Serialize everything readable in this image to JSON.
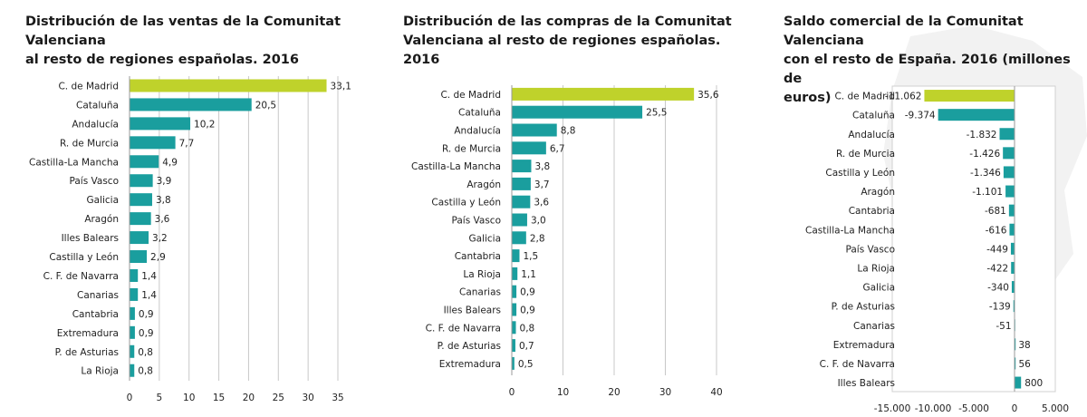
{
  "colors": {
    "highlight": "#bfd22b",
    "bar": "#1a9e9e",
    "grid": "#c8c8c8"
  },
  "chart_data": [
    {
      "type": "bar",
      "orientation": "horizontal",
      "title": "Distribución de las ventas de la Comunitat Valenciana al resto de regiones españolas. 2016",
      "title_lines": [
        "Distribución de las ventas de la Comunitat Valenciana",
        "al resto de regiones españolas. 2016"
      ],
      "categories": [
        "C. de Madrid",
        "Cataluña",
        "Andalucía",
        "R. de Murcia",
        "Castilla-La Mancha",
        "País Vasco",
        "Galicia",
        "Aragón",
        "Illes Balears",
        "Castilla y León",
        "C. F. de Navarra",
        "Canarias",
        "Cantabria",
        "Extremadura",
        "P. de Asturias",
        "La Rioja"
      ],
      "values": [
        33.1,
        20.5,
        10.2,
        7.7,
        4.9,
        3.9,
        3.8,
        3.6,
        3.2,
        2.9,
        1.4,
        1.4,
        0.9,
        0.9,
        0.8,
        0.8
      ],
      "value_labels": [
        "33,1",
        "20,5",
        "10,2",
        "7,7",
        "4,9",
        "3,9",
        "3,8",
        "3,6",
        "3,2",
        "2,9",
        "1,4",
        "1,4",
        "0,9",
        "0,9",
        "0,8",
        "0,8"
      ],
      "highlight_index": 0,
      "xlim": [
        0,
        35
      ],
      "xticks": [
        0,
        5,
        10,
        15,
        20,
        25,
        30,
        35
      ],
      "xtick_labels": [
        "0",
        "5",
        "10",
        "15",
        "20",
        "25",
        "30",
        "35"
      ],
      "grid": true
    },
    {
      "type": "bar",
      "orientation": "horizontal",
      "title": "Distribución de las compras de la Comunitat Valenciana al resto de regiones españolas. 2016",
      "title_lines": [
        "Distribución de las compras de la Comunitat",
        "Valenciana al resto de regiones españolas. 2016"
      ],
      "categories": [
        "C. de Madrid",
        "Cataluña",
        "Andalucía",
        "R. de Murcia",
        "Castilla-La Mancha",
        "Aragón",
        "Castilla y León",
        "País Vasco",
        "Galicia",
        "Cantabria",
        "La Rioja",
        "Canarias",
        "Illes Balears",
        "C. F. de Navarra",
        "P. de Asturias",
        "Extremadura"
      ],
      "values": [
        35.6,
        25.5,
        8.8,
        6.7,
        3.8,
        3.7,
        3.6,
        3.0,
        2.8,
        1.5,
        1.1,
        0.9,
        0.9,
        0.8,
        0.7,
        0.5
      ],
      "value_labels": [
        "35,6",
        "25,5",
        "8,8",
        "6,7",
        "3,8",
        "3,7",
        "3,6",
        "3,0",
        "2,8",
        "1,5",
        "1,1",
        "0,9",
        "0,9",
        "0,8",
        "0,7",
        "0,5"
      ],
      "highlight_index": 0,
      "xlim": [
        0,
        40
      ],
      "xticks": [
        0,
        10,
        20,
        30,
        40
      ],
      "xtick_labels": [
        "0",
        "10",
        "20",
        "30",
        "40"
      ],
      "grid": true
    },
    {
      "type": "bar",
      "orientation": "horizontal",
      "title": "Saldo comercial de la Comunitat Valenciana con el resto de España. 2016 (millones de euros)",
      "title_lines": [
        "Saldo comercial de la Comunitat Valenciana",
        "con el resto de España. 2016 (millones de",
        "euros)"
      ],
      "categories": [
        "C. de Madrid",
        "Cataluña",
        "Andalucía",
        "R. de Murcia",
        "Castilla y León",
        "Aragón",
        "Cantabria",
        "Castilla-La Mancha",
        "País Vasco",
        "La Rioja",
        "Galicia",
        "P. de Asturias",
        "Canarias",
        "Extremadura",
        "C. F. de Navarra",
        "Illes Balears"
      ],
      "values": [
        -11062,
        -9374,
        -1832,
        -1426,
        -1346,
        -1101,
        -681,
        -616,
        -449,
        -422,
        -340,
        -139,
        -51,
        38,
        56,
        800
      ],
      "value_labels": [
        "-11.062",
        "-9.374",
        "-1.832",
        "-1.426",
        "-1.346",
        "-1.101",
        "-681",
        "-616",
        "-449",
        "-422",
        "-340",
        "-139",
        "-51",
        "38",
        "56",
        "800"
      ],
      "highlight_index": 0,
      "xlim": [
        -15000,
        5000
      ],
      "xticks": [
        -15000,
        -10000,
        -5000,
        0,
        5000
      ],
      "xtick_labels": [
        "-15.000",
        "-10.000",
        "-5.000",
        "0",
        "5.000"
      ],
      "grid": false
    }
  ]
}
